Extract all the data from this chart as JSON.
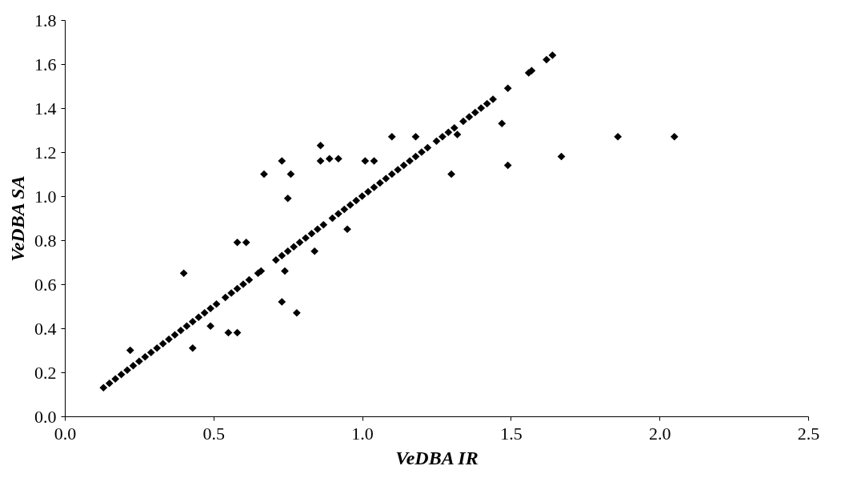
{
  "chart_data": {
    "type": "scatter",
    "xlabel": "VeDBA IR",
    "ylabel": "VeDBA SA",
    "xlim": [
      0,
      2.5
    ],
    "ylim": [
      0,
      1.8
    ],
    "xticks": [
      {
        "value": 0,
        "label": "0.0"
      },
      0.5,
      {
        "value": 1,
        "label": "1.0"
      },
      1.5,
      {
        "value": 2,
        "label": "2.0"
      },
      2.5
    ],
    "yticks": [
      {
        "value": 0,
        "label": "0.0"
      },
      0.2,
      0.4,
      0.6,
      0.8,
      {
        "value": 1,
        "label": "1.0"
      },
      1.2,
      1.4,
      1.6,
      1.8
    ],
    "grid": false,
    "marker": "diamond",
    "series": [
      {
        "color": "#000000",
        "x": [
          0.13,
          0.15,
          0.17,
          0.19,
          0.21,
          0.23,
          0.25,
          0.27,
          0.29,
          0.31,
          0.33,
          0.35,
          0.37,
          0.39,
          0.41,
          0.43,
          0.45,
          0.47,
          0.49,
          0.51,
          0.54,
          0.56,
          0.58,
          0.6,
          0.62,
          0.65,
          0.66,
          0.71,
          0.73,
          0.75,
          0.77,
          0.79,
          0.81,
          0.83,
          0.85,
          0.87,
          0.9,
          0.92,
          0.94,
          0.96,
          0.98,
          1.0,
          1.02,
          1.04,
          1.06,
          1.08,
          1.1,
          1.12,
          1.14,
          1.16,
          1.18,
          1.2,
          1.22,
          1.25,
          1.27,
          1.29,
          1.31,
          1.34,
          1.36,
          1.38,
          1.4,
          1.42,
          1.44,
          1.49,
          1.56,
          1.57,
          1.62,
          1.64,
          0.22,
          0.4,
          0.43,
          0.49,
          0.55,
          0.58,
          0.58,
          0.61,
          0.67,
          0.73,
          0.74,
          0.73,
          0.75,
          0.76,
          0.78,
          0.84,
          0.86,
          0.86,
          0.89,
          0.92,
          0.95,
          1.01,
          1.04,
          1.1,
          1.18,
          1.3,
          1.32,
          1.47,
          1.49,
          1.67,
          1.86,
          2.05
        ],
        "values": [
          0.13,
          0.15,
          0.17,
          0.19,
          0.21,
          0.23,
          0.25,
          0.27,
          0.29,
          0.31,
          0.33,
          0.35,
          0.37,
          0.39,
          0.41,
          0.43,
          0.45,
          0.47,
          0.49,
          0.51,
          0.54,
          0.56,
          0.58,
          0.6,
          0.62,
          0.65,
          0.66,
          0.71,
          0.73,
          0.75,
          0.77,
          0.79,
          0.81,
          0.83,
          0.85,
          0.87,
          0.9,
          0.92,
          0.94,
          0.96,
          0.98,
          1.0,
          1.02,
          1.04,
          1.06,
          1.08,
          1.1,
          1.12,
          1.14,
          1.16,
          1.18,
          1.2,
          1.22,
          1.25,
          1.27,
          1.29,
          1.31,
          1.34,
          1.36,
          1.38,
          1.4,
          1.42,
          1.44,
          1.49,
          1.56,
          1.57,
          1.62,
          1.64,
          0.3,
          0.65,
          0.31,
          0.41,
          0.38,
          0.38,
          0.79,
          0.79,
          1.1,
          1.16,
          0.66,
          0.52,
          0.99,
          1.1,
          0.47,
          0.75,
          1.23,
          1.16,
          1.17,
          1.17,
          0.85,
          1.16,
          1.16,
          1.27,
          1.27,
          1.1,
          1.28,
          1.33,
          1.14,
          1.18,
          1.27,
          1.27
        ]
      }
    ]
  }
}
